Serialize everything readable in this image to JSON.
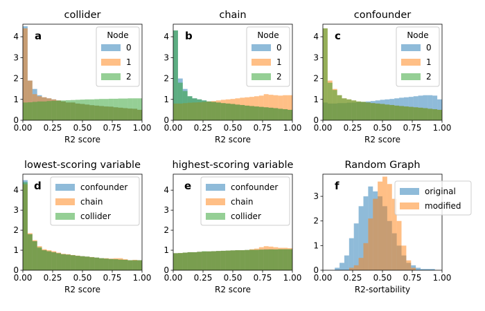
{
  "colors": {
    "blue": "#1f77b4",
    "orange": "#ff7f0e",
    "green": "#2ca02c"
  },
  "chart_data": [
    {
      "type": "histogram",
      "panel": "a",
      "title": "collider",
      "xlabel": "R2 score",
      "xlim": [
        0,
        1
      ],
      "ylim": [
        0,
        4.6
      ],
      "xticks": [
        "0.00",
        "0.25",
        "0.50",
        "0.75",
        "1.00"
      ],
      "yticks": [
        "0",
        "1",
        "2",
        "3",
        "4"
      ],
      "legend": {
        "title": "Node",
        "position": "upper right"
      },
      "bin_width": 0.04,
      "series": [
        {
          "name": "0",
          "color": "#1f77b4",
          "values": [
            4.5,
            1.9,
            1.5,
            1.2,
            1.1,
            1.05,
            1.0,
            0.95,
            0.9,
            0.85,
            0.85,
            0.8,
            0.78,
            0.75,
            0.72,
            0.7,
            0.68,
            0.66,
            0.65,
            0.62,
            0.6,
            0.58,
            0.56,
            0.55,
            0.5
          ]
        },
        {
          "name": "1",
          "color": "#ff7f0e",
          "values": [
            4.4,
            1.9,
            1.25,
            1.15,
            1.1,
            1.05,
            1.0,
            0.95,
            0.9,
            0.85,
            0.85,
            0.8,
            0.78,
            0.75,
            0.72,
            0.7,
            0.68,
            0.66,
            0.65,
            0.62,
            0.6,
            0.58,
            0.56,
            0.55,
            0.5
          ]
        },
        {
          "name": "2",
          "color": "#2ca02c",
          "values": [
            0.85,
            0.86,
            0.88,
            0.9,
            0.9,
            0.92,
            0.93,
            0.94,
            0.95,
            0.96,
            0.97,
            0.98,
            0.99,
            1.0,
            1.0,
            1.01,
            1.02,
            1.02,
            1.03,
            1.03,
            1.04,
            1.04,
            1.05,
            1.05,
            1.05
          ]
        }
      ]
    },
    {
      "type": "histogram",
      "panel": "b",
      "title": "chain",
      "xlabel": "R2 score",
      "xlim": [
        0,
        1
      ],
      "ylim": [
        0,
        4.6
      ],
      "xticks": [
        "0.00",
        "0.25",
        "0.50",
        "0.75",
        "1.00"
      ],
      "yticks": [
        "0",
        "1",
        "2",
        "3",
        "4"
      ],
      "legend": {
        "title": "Node",
        "position": "upper right"
      },
      "bin_width": 0.04,
      "series": [
        {
          "name": "0",
          "color": "#1f77b4",
          "values": [
            4.3,
            2.0,
            1.5,
            1.15,
            1.05,
            1.0,
            0.95,
            0.9,
            0.88,
            0.85,
            0.82,
            0.8,
            0.78,
            0.75,
            0.73,
            0.7,
            0.68,
            0.66,
            0.64,
            0.62,
            0.6,
            0.58,
            0.55,
            0.53,
            0.5
          ]
        },
        {
          "name": "1",
          "color": "#ff7f0e",
          "values": [
            0.8,
            0.8,
            0.82,
            0.84,
            0.85,
            0.86,
            0.88,
            0.9,
            0.92,
            0.95,
            0.98,
            1.0,
            1.02,
            1.05,
            1.08,
            1.1,
            1.12,
            1.15,
            1.18,
            1.25,
            1.22,
            1.2,
            1.18,
            1.2,
            1.2
          ]
        },
        {
          "name": "2",
          "color": "#2ca02c",
          "values": [
            4.3,
            1.8,
            1.4,
            1.15,
            1.05,
            1.0,
            0.95,
            0.9,
            0.88,
            0.85,
            0.82,
            0.8,
            0.78,
            0.75,
            0.73,
            0.7,
            0.68,
            0.66,
            0.64,
            0.62,
            0.6,
            0.58,
            0.55,
            0.53,
            0.5
          ]
        }
      ]
    },
    {
      "type": "histogram",
      "panel": "c",
      "title": "confounder",
      "xlabel": "R2 score",
      "xlim": [
        0,
        1
      ],
      "ylim": [
        0,
        4.6
      ],
      "xticks": [
        "0.00",
        "0.25",
        "0.50",
        "0.75",
        "1.00"
      ],
      "yticks": [
        "0",
        "1",
        "2",
        "3",
        "4"
      ],
      "legend": {
        "title": "Node",
        "position": "upper right"
      },
      "bin_width": 0.04,
      "series": [
        {
          "name": "0",
          "color": "#1f77b4",
          "values": [
            0.85,
            0.8,
            0.8,
            0.82,
            0.82,
            0.84,
            0.85,
            0.87,
            0.88,
            0.9,
            0.92,
            0.95,
            0.98,
            1.0,
            1.02,
            1.05,
            1.08,
            1.1,
            1.12,
            1.15,
            1.18,
            1.2,
            1.2,
            1.18,
            1.0
          ]
        },
        {
          "name": "1",
          "color": "#ff7f0e",
          "values": [
            4.4,
            1.9,
            1.5,
            1.2,
            1.05,
            1.0,
            0.95,
            0.9,
            0.88,
            0.85,
            0.82,
            0.8,
            0.78,
            0.75,
            0.73,
            0.7,
            0.68,
            0.66,
            0.64,
            0.62,
            0.6,
            0.58,
            0.55,
            0.53,
            0.5
          ]
        },
        {
          "name": "2",
          "color": "#2ca02c",
          "values": [
            4.4,
            1.8,
            1.45,
            1.2,
            1.05,
            1.0,
            0.95,
            0.9,
            0.88,
            0.85,
            0.82,
            0.8,
            0.78,
            0.75,
            0.73,
            0.7,
            0.68,
            0.66,
            0.64,
            0.62,
            0.6,
            0.58,
            0.55,
            0.53,
            0.5
          ]
        }
      ]
    },
    {
      "type": "histogram",
      "panel": "d",
      "title": "lowest-scoring variable",
      "xlabel": "R2 score",
      "xlim": [
        0,
        1
      ],
      "ylim": [
        0,
        4.8
      ],
      "xticks": [
        "0.00",
        "0.25",
        "0.50",
        "0.75",
        "1.00"
      ],
      "yticks": [
        "0",
        "1",
        "2",
        "3",
        "4"
      ],
      "legend": {
        "title": "",
        "position": "upper right"
      },
      "bin_width": 0.04,
      "series": [
        {
          "name": "confounder",
          "color": "#1f77b4",
          "values": [
            4.5,
            1.8,
            1.45,
            1.1,
            1.0,
            0.95,
            0.9,
            0.85,
            0.8,
            0.78,
            0.75,
            0.72,
            0.7,
            0.68,
            0.65,
            0.63,
            0.6,
            0.58,
            0.56,
            0.55,
            0.53,
            0.52,
            0.5,
            0.5,
            0.5
          ]
        },
        {
          "name": "chain",
          "color": "#ff7f0e",
          "values": [
            4.3,
            1.85,
            1.5,
            1.2,
            1.05,
            1.0,
            0.95,
            0.88,
            0.82,
            0.8,
            0.76,
            0.73,
            0.7,
            0.68,
            0.66,
            0.63,
            0.6,
            0.6,
            0.58,
            0.6,
            0.6,
            0.55,
            0.5,
            0.52,
            0.5
          ]
        },
        {
          "name": "collider",
          "color": "#2ca02c",
          "values": [
            4.4,
            1.8,
            1.45,
            1.15,
            1.0,
            0.95,
            0.9,
            0.85,
            0.8,
            0.78,
            0.75,
            0.72,
            0.7,
            0.68,
            0.65,
            0.63,
            0.6,
            0.58,
            0.56,
            0.55,
            0.53,
            0.52,
            0.5,
            0.5,
            0.5
          ]
        }
      ]
    },
    {
      "type": "histogram",
      "panel": "e",
      "title": "highest-scoring variable",
      "xlabel": "R2 score",
      "xlim": [
        0,
        1
      ],
      "ylim": [
        0,
        4.8
      ],
      "xticks": [
        "0.00",
        "0.25",
        "0.50",
        "0.75",
        "1.00"
      ],
      "yticks": [
        "0",
        "1",
        "2",
        "3",
        "4"
      ],
      "legend": {
        "title": "",
        "position": "upper right"
      },
      "bin_width": 0.04,
      "series": [
        {
          "name": "confounder",
          "color": "#1f77b4",
          "values": [
            0.85,
            0.85,
            0.88,
            0.9,
            0.9,
            0.92,
            0.93,
            0.94,
            0.95,
            0.96,
            0.97,
            0.98,
            0.99,
            1.0,
            1.0,
            1.01,
            1.02,
            1.02,
            1.03,
            1.05,
            1.05,
            1.04,
            1.05,
            1.05,
            1.05
          ]
        },
        {
          "name": "chain",
          "color": "#ff7f0e",
          "values": [
            0.85,
            0.86,
            0.88,
            0.9,
            0.9,
            0.92,
            0.93,
            0.94,
            0.95,
            0.96,
            0.97,
            0.98,
            0.99,
            1.0,
            1.0,
            1.01,
            1.05,
            1.08,
            1.15,
            1.2,
            1.18,
            1.15,
            1.12,
            1.12,
            1.1
          ]
        },
        {
          "name": "collider",
          "color": "#2ca02c",
          "values": [
            0.85,
            0.86,
            0.88,
            0.9,
            0.9,
            0.92,
            0.95,
            0.94,
            0.95,
            0.96,
            0.97,
            0.98,
            0.99,
            1.0,
            1.0,
            1.01,
            1.02,
            1.02,
            1.03,
            1.03,
            1.04,
            1.04,
            1.05,
            1.05,
            1.05
          ]
        }
      ]
    },
    {
      "type": "histogram",
      "panel": "f",
      "title": "Random Graph",
      "xlabel": "R2-sortability",
      "xlim": [
        0,
        1
      ],
      "ylim": [
        0,
        3.9
      ],
      "xticks": [
        "0.00",
        "0.25",
        "0.50",
        "0.75",
        "1.00"
      ],
      "yticks": [
        "0",
        "1",
        "2",
        "3"
      ],
      "legend": {
        "title": "",
        "position": "upper right"
      },
      "bin_edges": [
        0.1,
        0.14,
        0.18,
        0.22,
        0.26,
        0.3,
        0.34,
        0.38,
        0.42,
        0.46,
        0.5,
        0.54,
        0.58,
        0.62,
        0.66,
        0.7,
        0.74,
        0.78,
        0.82,
        0.86,
        0.9,
        0.94
      ],
      "series": [
        {
          "name": "original",
          "color": "#1f77b4",
          "values": [
            0.1,
            0.3,
            0.6,
            1.3,
            1.9,
            2.6,
            3.0,
            3.4,
            3.2,
            3.0,
            2.6,
            2.0,
            1.5,
            1.0,
            0.6,
            0.3,
            0.2,
            0.1,
            0.05,
            0.05,
            0.05
          ]
        },
        {
          "name": "modified",
          "color": "#ff7f0e",
          "values": [
            0,
            0,
            0,
            0.1,
            0.2,
            0.5,
            1.1,
            2.1,
            2.9,
            3.6,
            3.8,
            3.5,
            2.9,
            2.0,
            1.0,
            0.4,
            0.1,
            0,
            0,
            0,
            0
          ]
        }
      ]
    }
  ]
}
